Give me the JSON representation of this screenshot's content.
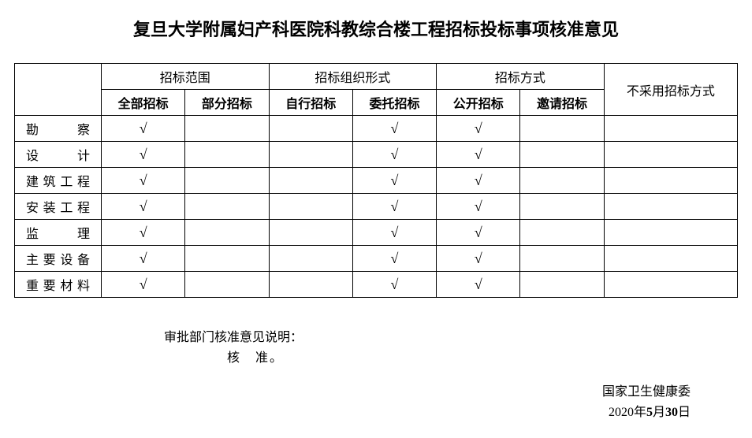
{
  "title": "复旦大学附属妇产科医院科教综合楼工程招标投标事项核准意见",
  "table": {
    "groupHeaders": [
      "招标范围",
      "招标组织形式",
      "招标方式",
      "不采用招标方式"
    ],
    "subHeaders": [
      "全部招标",
      "部分招标",
      "自行招标",
      "委托招标",
      "公开招标",
      "邀请招标"
    ],
    "rows": [
      {
        "label": "勘察",
        "cells": [
          "√",
          "",
          "",
          "√",
          "√",
          "",
          ""
        ]
      },
      {
        "label": "设计",
        "cells": [
          "√",
          "",
          "",
          "√",
          "√",
          "",
          ""
        ]
      },
      {
        "label": "建筑工程",
        "cells": [
          "√",
          "",
          "",
          "√",
          "√",
          "",
          ""
        ]
      },
      {
        "label": "安装工程",
        "cells": [
          "√",
          "",
          "",
          "√",
          "√",
          "",
          ""
        ]
      },
      {
        "label": "监理",
        "cells": [
          "√",
          "",
          "",
          "√",
          "√",
          "",
          ""
        ]
      },
      {
        "label": "主要设备",
        "cells": [
          "√",
          "",
          "",
          "√",
          "√",
          "",
          ""
        ]
      },
      {
        "label": "重要材料",
        "cells": [
          "√",
          "",
          "",
          "√",
          "√",
          "",
          ""
        ]
      }
    ]
  },
  "approval": {
    "line1": "审批部门核准意见说明：",
    "line2": "核　准。"
  },
  "signature": {
    "org": "国家卫生健康委",
    "year": "2020",
    "month": "5",
    "day": "30",
    "yearSuffix": "年",
    "monthSuffix": "月",
    "daySuffix": "日"
  },
  "colors": {
    "text": "#000000",
    "border": "#000000",
    "background": "#ffffff"
  },
  "fonts": {
    "titleSize": 22,
    "bodySize": 16
  }
}
